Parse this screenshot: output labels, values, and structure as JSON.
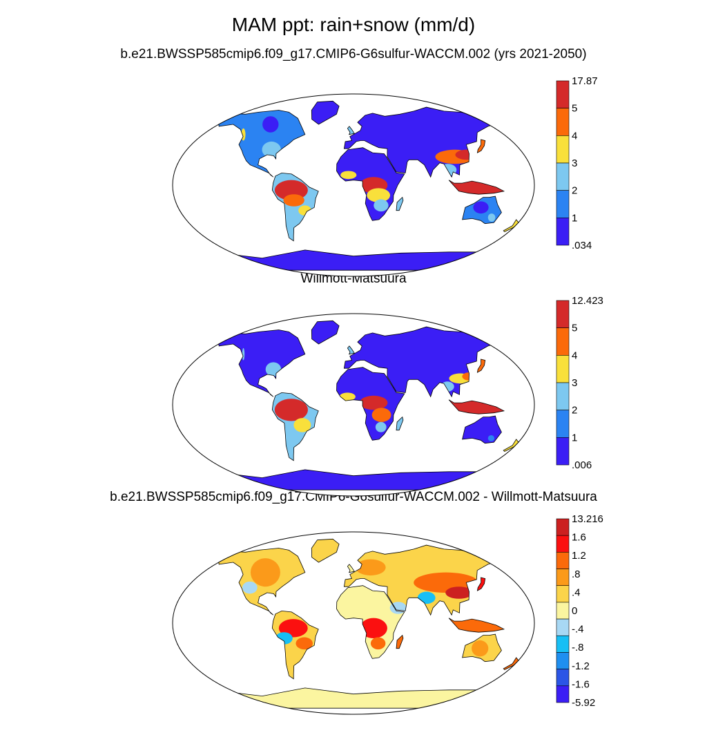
{
  "figure": {
    "title": "MAM ppt: rain+snow (mm/d)"
  },
  "colors": {
    "precip": [
      "#3b1ef5",
      "#2b83f2",
      "#7dc8f0",
      "#f9e03b",
      "#fb6a0a",
      "#d42a2a"
    ],
    "diff": [
      "#3b1ef5",
      "#2b55e6",
      "#1f8ff0",
      "#17bff5",
      "#a8d8f4",
      "#fbf5a0",
      "#fbd44a",
      "#fb9a1a",
      "#fb6a0a",
      "#fb1010",
      "#cc2020"
    ],
    "land_accent_dry": "#3b1ef5",
    "ocean": "#ffffff"
  },
  "panels": [
    {
      "id": "model",
      "subtitle": "b.e21.BWSSP585cmip6.f09_g17.CMIP6-G6sulfur-WACCM.002 (yrs 2021-2050)",
      "colorbar": {
        "palette": "precip",
        "labels": [
          "17.87",
          "5",
          "4",
          "3",
          "2",
          "1",
          ".034"
        ]
      }
    },
    {
      "id": "obs",
      "subtitle": "Willmott-Matsuura",
      "colorbar": {
        "palette": "precip",
        "labels": [
          "12.423",
          "5",
          "4",
          "3",
          "2",
          "1",
          ".006"
        ]
      }
    },
    {
      "id": "diff",
      "subtitle": "b.e21.BWSSP585cmip6.f09_g17.CMIP6-G6sulfur-WACCM.002 - Willmott-Matsuura",
      "colorbar": {
        "palette": "diff",
        "labels": [
          "13.216",
          "1.6",
          "1.2",
          ".8",
          ".4",
          "0",
          "-.4",
          "-.8",
          "-1.2",
          "-1.6",
          "-5.92"
        ]
      }
    }
  ],
  "chart_data": {
    "type": "heatmap",
    "projection": "Robinson",
    "season": "MAM",
    "variable": "ppt: rain+snow",
    "units": "mm/d",
    "maps": [
      {
        "name": "b.e21.BWSSP585cmip6.f09_g17.CMIP6-G6sulfur-WACCM.002 (yrs 2021-2050)",
        "levels": [
          1,
          2,
          3,
          4,
          5
        ],
        "min": 0.034,
        "max": 17.87
      },
      {
        "name": "Willmott-Matsuura",
        "levels": [
          1,
          2,
          3,
          4,
          5
        ],
        "min": 0.006,
        "max": 12.423
      },
      {
        "name": "b.e21.BWSSP585cmip6.f09_g17.CMIP6-G6sulfur-WACCM.002 - Willmott-Matsuura",
        "levels": [
          -1.6,
          -1.2,
          -0.8,
          -0.4,
          0,
          0.4,
          0.8,
          1.2,
          1.6
        ],
        "min": -5.92,
        "max": 13.216
      }
    ]
  }
}
